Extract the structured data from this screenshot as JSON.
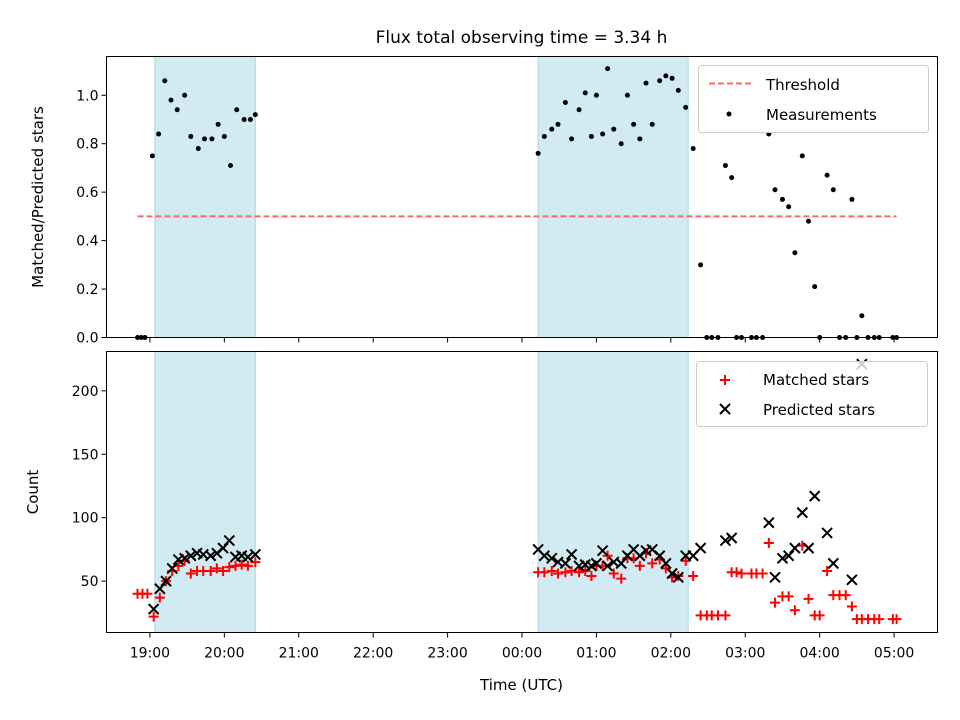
{
  "title": "Flux total observing time = 3.34 h",
  "colors": {
    "band": "#add8e6",
    "threshold": "#ff6666",
    "measurement": "#000000",
    "matched": "#ff0000",
    "predicted": "#000000"
  },
  "chart_data": [
    {
      "type": "scatter",
      "ylabel": "Matched/Predicted stars",
      "ylim": [
        0,
        1.16
      ],
      "yticks": [
        0.0,
        0.2,
        0.4,
        0.6,
        0.8,
        1.0
      ],
      "ytick_labels": [
        "0.0",
        "0.2",
        "0.4",
        "0.6",
        "0.8",
        "1.0"
      ],
      "legend_position": "upper right",
      "legend": [
        "Threshold",
        "Measurements"
      ],
      "threshold": {
        "name": "Threshold",
        "y": 0.5,
        "x_start": "18:50",
        "x_end": "05:02"
      },
      "series": [
        {
          "name": "Measurements",
          "points": [
            [
              "18:50",
              0
            ],
            [
              "18:53",
              0
            ],
            [
              "18:56",
              0
            ],
            [
              "19:02",
              0.75
            ],
            [
              "19:07",
              0.84
            ],
            [
              "19:12",
              1.06
            ],
            [
              "19:17",
              0.98
            ],
            [
              "19:22",
              0.94
            ],
            [
              "19:28",
              1.0
            ],
            [
              "19:33",
              0.83
            ],
            [
              "19:39",
              0.78
            ],
            [
              "19:44",
              0.82
            ],
            [
              "19:50",
              0.82
            ],
            [
              "19:55",
              0.88
            ],
            [
              "20:00",
              0.83
            ],
            [
              "20:05",
              0.71
            ],
            [
              "20:10",
              0.94
            ],
            [
              "20:16",
              0.9
            ],
            [
              "20:21",
              0.9
            ],
            [
              "20:25",
              0.92
            ],
            [
              "00:13",
              0.76
            ],
            [
              "00:18",
              0.83
            ],
            [
              "00:24",
              0.86
            ],
            [
              "00:29",
              0.88
            ],
            [
              "00:35",
              0.97
            ],
            [
              "00:40",
              0.82
            ],
            [
              "00:46",
              0.94
            ],
            [
              "00:51",
              1.01
            ],
            [
              "00:56",
              0.83
            ],
            [
              "01:00",
              1.0
            ],
            [
              "01:05",
              0.84
            ],
            [
              "01:09",
              1.11
            ],
            [
              "01:14",
              0.86
            ],
            [
              "01:20",
              0.8
            ],
            [
              "01:25",
              1.0
            ],
            [
              "01:30",
              0.88
            ],
            [
              "01:35",
              0.82
            ],
            [
              "01:40",
              1.05
            ],
            [
              "01:45",
              0.88
            ],
            [
              "01:51",
              1.06
            ],
            [
              "01:56",
              1.08
            ],
            [
              "02:01",
              1.07
            ],
            [
              "02:06",
              1.02
            ],
            [
              "02:12",
              0.95
            ],
            [
              "02:18",
              0.78
            ],
            [
              "02:24",
              0.3
            ],
            [
              "02:29",
              0
            ],
            [
              "02:33",
              0
            ],
            [
              "02:38",
              0
            ],
            [
              "02:44",
              0.71
            ],
            [
              "02:49",
              0.66
            ],
            [
              "02:53",
              0
            ],
            [
              "02:57",
              0
            ],
            [
              "03:05",
              0
            ],
            [
              "03:09",
              0
            ],
            [
              "03:14",
              0
            ],
            [
              "03:19",
              0.84
            ],
            [
              "03:24",
              0.61
            ],
            [
              "03:30",
              0.57
            ],
            [
              "03:35",
              0.54
            ],
            [
              "03:40",
              0.35
            ],
            [
              "03:46",
              0.75
            ],
            [
              "03:51",
              0.48
            ],
            [
              "03:56",
              0.21
            ],
            [
              "04:00",
              0
            ],
            [
              "04:06",
              0.67
            ],
            [
              "04:11",
              0.61
            ],
            [
              "04:16",
              0
            ],
            [
              "04:21",
              0
            ],
            [
              "04:26",
              0.57
            ],
            [
              "04:30",
              0
            ],
            [
              "04:34",
              0.09
            ],
            [
              "04:39",
              0
            ],
            [
              "04:44",
              0
            ],
            [
              "04:48",
              0
            ],
            [
              "04:59",
              0
            ],
            [
              "05:02",
              0
            ]
          ]
        }
      ]
    },
    {
      "type": "scatter",
      "xlabel": "Time (UTC)",
      "ylabel": "Count",
      "ylim": [
        9.5,
        231
      ],
      "yticks": [
        50,
        100,
        150,
        200
      ],
      "ytick_labels": [
        "50",
        "100",
        "150",
        "200"
      ],
      "xticks": [
        "19:00",
        "20:00",
        "21:00",
        "22:00",
        "23:00",
        "00:00",
        "01:00",
        "02:00",
        "03:00",
        "04:00",
        "05:00"
      ],
      "xtick_labels": [
        "19:00",
        "20:00",
        "21:00",
        "22:00",
        "23:00",
        "00:00",
        "01:00",
        "02:00",
        "03:00",
        "04:00",
        "05:00"
      ],
      "legend_position": "upper right",
      "legend": [
        "Matched stars",
        "Predicted stars"
      ],
      "series": [
        {
          "name": "Matched stars",
          "points": [
            [
              "18:50",
              40
            ],
            [
              "18:54",
              40
            ],
            [
              "18:58",
              40
            ],
            [
              "19:03",
              22
            ],
            [
              "19:08",
              37
            ],
            [
              "19:13",
              50
            ],
            [
              "19:18",
              58
            ],
            [
              "19:23",
              62
            ],
            [
              "19:28",
              66
            ],
            [
              "19:33",
              56
            ],
            [
              "19:38",
              58
            ],
            [
              "19:43",
              58
            ],
            [
              "19:49",
              58
            ],
            [
              "19:54",
              60
            ],
            [
              "19:59",
              58
            ],
            [
              "20:04",
              61
            ],
            [
              "20:09",
              62
            ],
            [
              "20:14",
              63
            ],
            [
              "20:19",
              62
            ],
            [
              "20:25",
              65
            ],
            [
              "00:13",
              57
            ],
            [
              "00:18",
              57
            ],
            [
              "00:24",
              58
            ],
            [
              "00:29",
              56
            ],
            [
              "00:35",
              57
            ],
            [
              "00:40",
              58
            ],
            [
              "00:46",
              57
            ],
            [
              "00:51",
              58
            ],
            [
              "00:56",
              54
            ],
            [
              "01:00",
              62
            ],
            [
              "01:05",
              62
            ],
            [
              "01:09",
              70
            ],
            [
              "01:14",
              56
            ],
            [
              "01:20",
              52
            ],
            [
              "01:25",
              68
            ],
            [
              "01:30",
              68
            ],
            [
              "01:35",
              62
            ],
            [
              "01:40",
              72
            ],
            [
              "01:45",
              64
            ],
            [
              "01:51",
              67
            ],
            [
              "01:56",
              60
            ],
            [
              "02:01",
              53
            ],
            [
              "02:06",
              54
            ],
            [
              "02:12",
              66
            ],
            [
              "02:18",
              54
            ],
            [
              "02:24",
              23
            ],
            [
              "02:29",
              23
            ],
            [
              "02:33",
              23
            ],
            [
              "02:38",
              23
            ],
            [
              "02:44",
              23
            ],
            [
              "02:49",
              57
            ],
            [
              "02:53",
              57
            ],
            [
              "02:57",
              56
            ],
            [
              "03:05",
              56
            ],
            [
              "03:09",
              56
            ],
            [
              "03:14",
              56
            ],
            [
              "03:19",
              80
            ],
            [
              "03:24",
              33
            ],
            [
              "03:30",
              38
            ],
            [
              "03:35",
              38
            ],
            [
              "03:40",
              27
            ],
            [
              "03:46",
              78
            ],
            [
              "03:51",
              36
            ],
            [
              "03:56",
              23
            ],
            [
              "04:00",
              23
            ],
            [
              "04:06",
              58
            ],
            [
              "04:11",
              39
            ],
            [
              "04:16",
              39
            ],
            [
              "04:21",
              39
            ],
            [
              "04:26",
              30
            ],
            [
              "04:30",
              20
            ],
            [
              "04:34",
              20
            ],
            [
              "04:39",
              20
            ],
            [
              "04:44",
              20
            ],
            [
              "04:48",
              20
            ],
            [
              "04:59",
              20
            ],
            [
              "05:02",
              20
            ]
          ]
        },
        {
          "name": "Predicted stars",
          "points": [
            [
              "19:03",
              28
            ],
            [
              "19:08",
              44
            ],
            [
              "19:13",
              50
            ],
            [
              "19:18",
              60
            ],
            [
              "19:23",
              67
            ],
            [
              "19:28",
              68
            ],
            [
              "19:33",
              70
            ],
            [
              "19:38",
              72
            ],
            [
              "19:43",
              71
            ],
            [
              "19:49",
              70
            ],
            [
              "19:54",
              72
            ],
            [
              "19:59",
              76
            ],
            [
              "20:04",
              82
            ],
            [
              "20:09",
              69
            ],
            [
              "20:14",
              70
            ],
            [
              "20:19",
              69
            ],
            [
              "20:25",
              71
            ],
            [
              "00:13",
              75
            ],
            [
              "00:18",
              70
            ],
            [
              "00:24",
              68
            ],
            [
              "00:29",
              65
            ],
            [
              "00:35",
              64
            ],
            [
              "00:40",
              71
            ],
            [
              "00:46",
              62
            ],
            [
              "00:51",
              63
            ],
            [
              "00:56",
              62
            ],
            [
              "01:00",
              64
            ],
            [
              "01:05",
              74
            ],
            [
              "01:09",
              62
            ],
            [
              "01:14",
              65
            ],
            [
              "01:20",
              64
            ],
            [
              "01:25",
              70
            ],
            [
              "01:30",
              75
            ],
            [
              "01:35",
              70
            ],
            [
              "01:40",
              74
            ],
            [
              "01:45",
              75
            ],
            [
              "01:51",
              70
            ],
            [
              "01:56",
              64
            ],
            [
              "02:01",
              56
            ],
            [
              "02:06",
              53
            ],
            [
              "02:12",
              70
            ],
            [
              "02:18",
              70
            ],
            [
              "02:24",
              76
            ],
            [
              "02:44",
              82
            ],
            [
              "02:49",
              84
            ],
            [
              "03:19",
              96
            ],
            [
              "03:24",
              53
            ],
            [
              "03:30",
              68
            ],
            [
              "03:35",
              70
            ],
            [
              "03:40",
              76
            ],
            [
              "03:46",
              104
            ],
            [
              "03:51",
              76
            ],
            [
              "03:56",
              117
            ],
            [
              "04:06",
              88
            ],
            [
              "04:11",
              64
            ],
            [
              "04:26",
              51
            ],
            [
              "04:34",
              221
            ]
          ]
        }
      ]
    }
  ],
  "observing_windows": [
    [
      "19:04",
      "20:25"
    ],
    [
      "00:13",
      "02:14"
    ]
  ]
}
